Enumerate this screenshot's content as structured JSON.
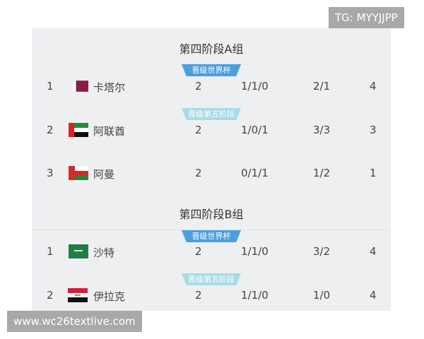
{
  "watermark_top": "TG: MYYJJPP",
  "watermark_bottom": "www.wc26textlive.com",
  "badges": {
    "world_cup": "晋级世界杯",
    "fifth_stage": "晋级第五阶段"
  },
  "colors": {
    "world_cup_badge": "#4a9fdf",
    "fifth_stage_badge": "#a9dbe6"
  },
  "groups": [
    {
      "title": "第四阶段A组",
      "rows": [
        {
          "rank": "1",
          "flag": "qatar-flag",
          "team": "卡塔尔",
          "played": "2",
          "wdl": "1/1/0",
          "goals": "2/1",
          "points": "4",
          "badge": "world_cup"
        },
        {
          "rank": "2",
          "flag": "uae-flag",
          "team": "阿联酋",
          "played": "2",
          "wdl": "1/0/1",
          "goals": "3/3",
          "points": "3",
          "badge": "fifth_stage"
        },
        {
          "rank": "3",
          "flag": "oman-flag",
          "team": "阿曼",
          "played": "2",
          "wdl": "0/1/1",
          "goals": "1/2",
          "points": "1"
        }
      ]
    },
    {
      "title": "第四阶段B组",
      "rows": [
        {
          "rank": "1",
          "flag": "saudi-flag",
          "team": "沙特",
          "played": "2",
          "wdl": "1/1/0",
          "goals": "3/2",
          "points": "4",
          "badge": "world_cup"
        },
        {
          "rank": "2",
          "flag": "iraq-flag",
          "team": "伊拉克",
          "played": "2",
          "wdl": "1/1/0",
          "goals": "1/0",
          "points": "4",
          "badge": "fifth_stage"
        }
      ]
    }
  ]
}
